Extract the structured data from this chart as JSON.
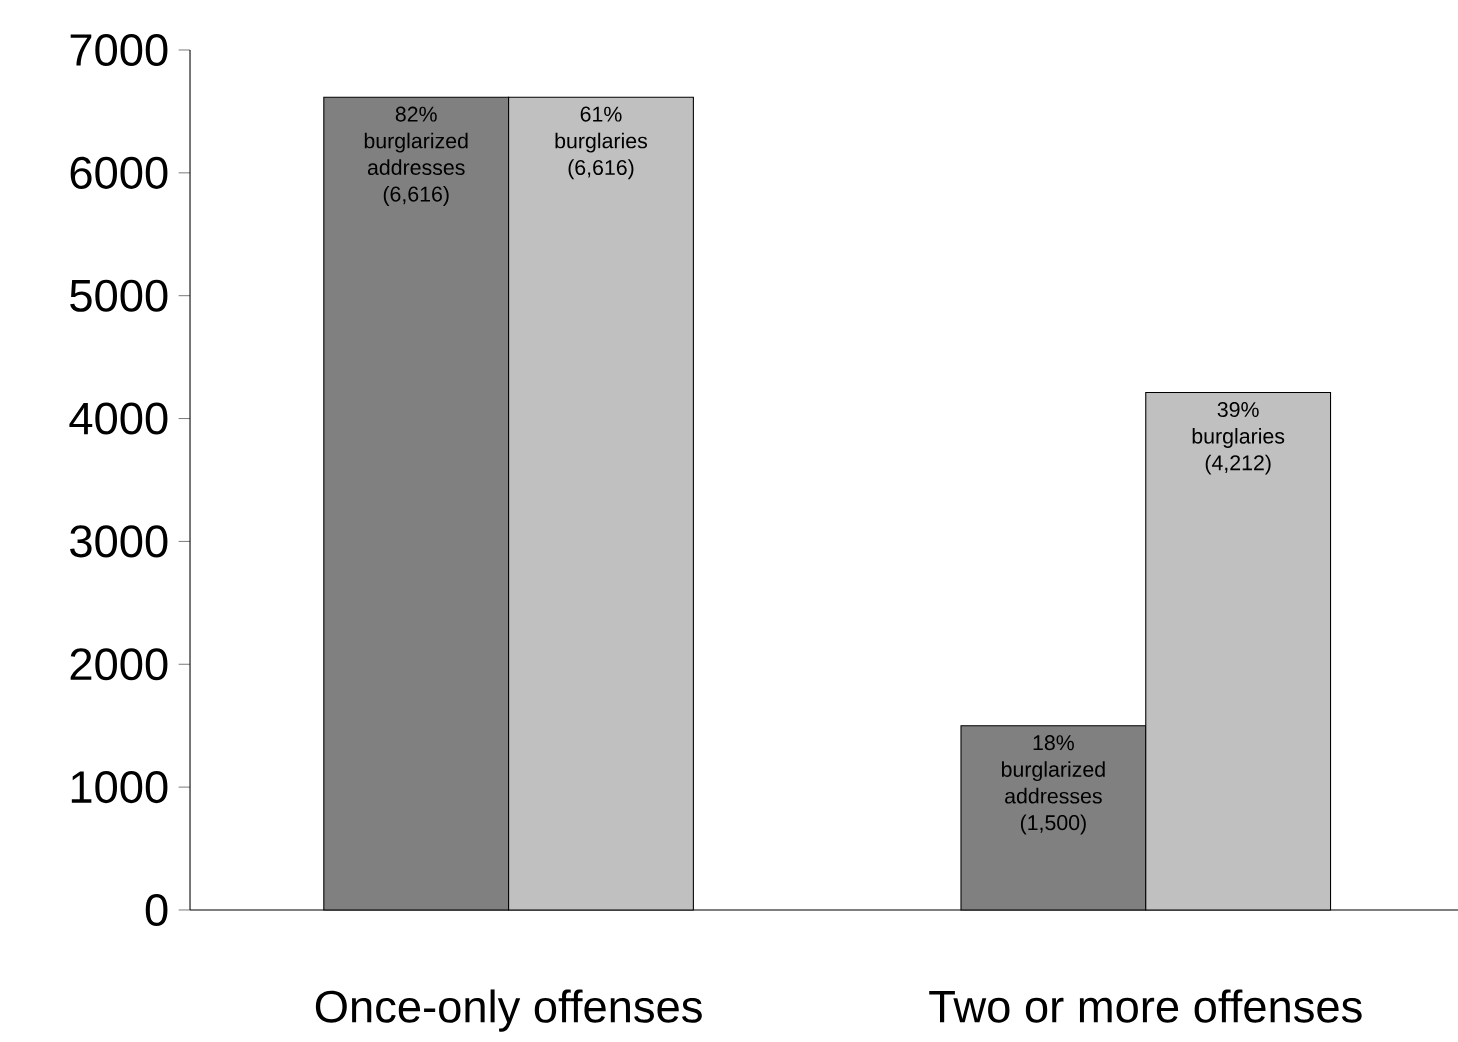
{
  "chart_data": {
    "type": "bar",
    "categories": [
      "Once-only offenses",
      "Two or more offenses"
    ],
    "series": [
      {
        "color": "#808080",
        "values": [
          6616,
          1500
        ],
        "value_labels": [
          "82% burglarized addresses (6,616)",
          "18% burglarized addresses (1,500)"
        ]
      },
      {
        "color": "#c0c0c0",
        "values": [
          6616,
          4212
        ],
        "value_labels": [
          "61% burglaries (6,616)",
          "39% burglaries (4,212)"
        ]
      }
    ],
    "ylim": [
      0,
      7000
    ],
    "yticks": [
      0,
      1000,
      2000,
      3000,
      4000,
      5000,
      6000,
      7000
    ]
  }
}
